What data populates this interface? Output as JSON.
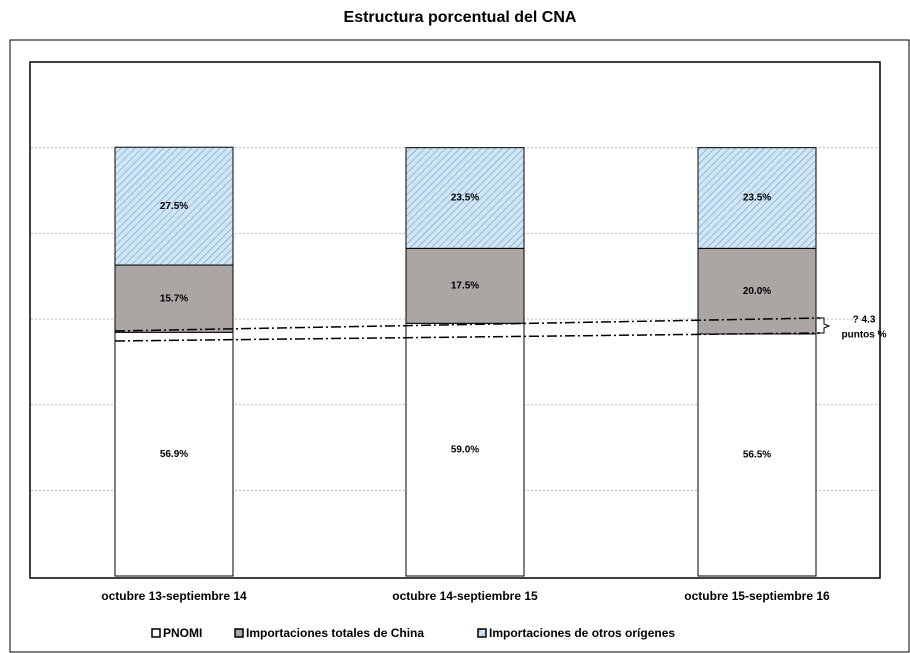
{
  "chart_data": {
    "type": "stacked_bar",
    "title": "Estructura porcentual del CNA",
    "categories": [
      "octubre 13-septiembre 14",
      "octubre 14-septiembre 15",
      "octubre 15-septiembre 16"
    ],
    "series": [
      {
        "name": "PNOMI",
        "color": "#ffffff",
        "values": [
          56.9,
          59.0,
          56.5
        ],
        "value_labels": [
          "56.9%",
          "59.0%",
          "56.5%"
        ]
      },
      {
        "name": "Importaciones totales de China",
        "color": "#aba5a3",
        "values": [
          15.7,
          17.5,
          20.0
        ],
        "value_labels": [
          "15.7%",
          "17.5%",
          "20.0%"
        ]
      },
      {
        "name": "Importaciones de otros orígenes",
        "color": "#cfe6f7",
        "values": [
          27.5,
          23.5,
          23.5
        ],
        "value_labels": [
          "27.5%",
          "23.5%",
          "23.5%"
        ]
      }
    ],
    "annotations": [
      "? 4.3",
      "puntos %"
    ],
    "ylim": [
      0,
      120
    ],
    "yticks": [
      20,
      40,
      60,
      80,
      100
    ],
    "grid": true,
    "legend": "bottom"
  }
}
